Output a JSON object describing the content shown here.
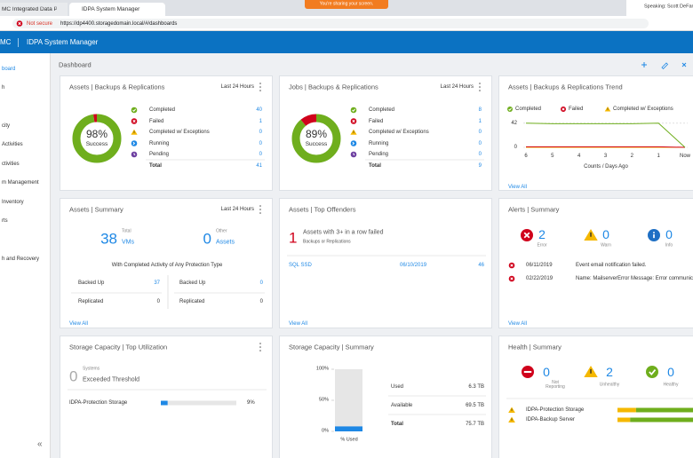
{
  "browser": {
    "tabs": [
      "MC Integrated Data Protec",
      "IDPA System Manager"
    ],
    "banner": "You're sharing your screen.",
    "speaking": "Speaking: Scott DeFam",
    "security": "Not secure",
    "url": "https://dp4400.storagedomain.local/#/dashboards"
  },
  "app": {
    "brand": "MC",
    "title": "IDPA System Manager"
  },
  "sidebar": {
    "items": [
      "board",
      "h",
      "city",
      "Activities",
      "ctivities",
      "m Management",
      "Inventory",
      "rts",
      "h and Recovery"
    ],
    "collapse": "«"
  },
  "dashboard": {
    "title": "Dashboard"
  },
  "assets_backups": {
    "title": "Assets | Backups & Replications",
    "period": "Last 24 Hours",
    "success": "98%",
    "success_label": "Success",
    "statuses": [
      {
        "label": "Completed",
        "value": 40
      },
      {
        "label": "Failed",
        "value": 1
      },
      {
        "label": "Completed w/ Exceptions",
        "value": 0
      },
      {
        "label": "Running",
        "value": 0
      },
      {
        "label": "Pending",
        "value": 0
      }
    ],
    "total_label": "Total",
    "total": 41
  },
  "jobs_backups": {
    "title": "Jobs | Backups & Replications",
    "period": "Last 24 Hours",
    "success": "89%",
    "success_label": "Success",
    "statuses": [
      {
        "label": "Completed",
        "value": 8
      },
      {
        "label": "Failed",
        "value": 1
      },
      {
        "label": "Completed w/ Exceptions",
        "value": 0
      },
      {
        "label": "Running",
        "value": 0
      },
      {
        "label": "Pending",
        "value": 0
      }
    ],
    "total_label": "Total",
    "total": 9
  },
  "trend": {
    "title": "Assets | Backups & Replications Trend",
    "type": "line",
    "categories": [
      "6",
      "5",
      "4",
      "3",
      "2",
      "1",
      "Now"
    ],
    "series": [
      {
        "name": "Completed",
        "color": "#6fae1d",
        "values": [
          42,
          41,
          41,
          41,
          41,
          42,
          0
        ]
      },
      {
        "name": "Failed",
        "color": "#d0021b",
        "values": [
          1,
          1,
          1,
          1,
          1,
          1,
          0
        ]
      },
      {
        "name": "Completed w/ Exceptions",
        "color": "#f5b800",
        "values": [
          0,
          0,
          0,
          0,
          0,
          0,
          0
        ]
      }
    ],
    "ylim": [
      0,
      54
    ],
    "yticks": [
      0,
      42
    ],
    "xlabel": "Counts / Days Ago",
    "view_all": "View All"
  },
  "assets_summary": {
    "title": "Assets | Summary",
    "period": "Last 24 Hours",
    "total": 38,
    "total_label": "Total",
    "total_unit": "VMs",
    "other": 0,
    "other_label": "Other",
    "other_unit": "Assets",
    "subtitle": "With Completed Activity of Any Protection Type",
    "rows": [
      [
        "Backed Up",
        37
      ],
      [
        "Replicated",
        0
      ],
      [
        "Backed Up",
        0
      ],
      [
        "Replicated",
        0
      ]
    ],
    "view_all": "View All"
  },
  "top_offenders": {
    "title": "Assets | Top Offenders",
    "count": 1,
    "heading": "Assets with 3+ in a row failed",
    "subheading": "Backups or Replications",
    "rows": [
      [
        "SQL SSD",
        "06/10/2019",
        46
      ]
    ],
    "view_all": "View All"
  },
  "alerts": {
    "title": "Alerts | Summary",
    "counts": [
      {
        "value": 2,
        "label": "Error"
      },
      {
        "value": 0,
        "label": "Warn"
      },
      {
        "value": 0,
        "label": "Info"
      }
    ],
    "rows": [
      [
        "06/11/2019",
        "Event email notification failed."
      ],
      [
        "02/22/2019",
        "Name: MailserverError Message: Error communicating"
      ]
    ],
    "view_all": "View All"
  },
  "top_utilization": {
    "title": "Storage Capacity | Top Utilization",
    "count": 0,
    "count_label": "Systems",
    "heading": "Exceeded Threshold",
    "rows": [
      {
        "name": "IDPA-Protection Storage",
        "value": 9,
        "label": "9%"
      }
    ]
  },
  "capacity_summary": {
    "title": "Storage Capacity | Summary",
    "used_percent": 8,
    "ylim": [
      0,
      100
    ],
    "yticks": [
      {
        "value": 100,
        "label": "100%"
      },
      {
        "value": 50,
        "label": "50%"
      },
      {
        "value": 0,
        "label": "0%"
      }
    ],
    "xlabel": "% Used",
    "rows": [
      [
        "Used",
        "6.3 TB"
      ],
      [
        "Available",
        "69.5 TB"
      ],
      [
        "Total",
        "75.7 TB"
      ]
    ]
  },
  "health": {
    "title": "Health | Summary",
    "counts": [
      {
        "value": 0,
        "label": "Not Reporting"
      },
      {
        "value": 2,
        "label": "Unhealthy"
      },
      {
        "value": 0,
        "label": "Healthy"
      }
    ],
    "rows": [
      {
        "name": "IDPA-Protection Storage",
        "bar": [
          22,
          78
        ]
      },
      {
        "name": "IDPA-Backup Server",
        "bar": [
          15,
          85
        ]
      }
    ]
  }
}
